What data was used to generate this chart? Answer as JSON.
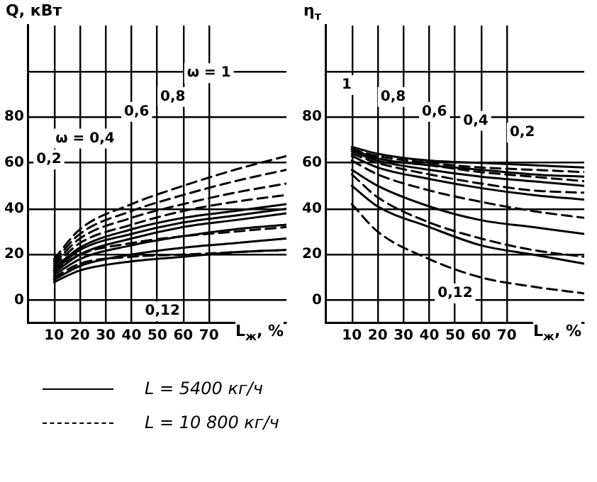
{
  "chart_data": [
    {
      "type": "line",
      "xlabel": "L$_{ж}$, %",
      "ylabel": "Q, кВт",
      "xlim": [
        0,
        100
      ],
      "xticks": [
        10,
        20,
        30,
        40,
        50,
        60,
        70
      ],
      "ylim": [
        -10,
        120
      ],
      "yticks": [
        0,
        20,
        40,
        60,
        80,
        {
          "value": 100,
          "label": null
        }
      ],
      "grid": true,
      "marker": "none",
      "legend": "bottom",
      "x": [
        10,
        20,
        40,
        60,
        80,
        100
      ],
      "series": [
        {
          "name": "L = 5400 кг/ч",
          "color": "#000000",
          "line_style": "solid",
          "values": [
            8,
            13,
            17,
            19,
            21,
            22
          ]
        },
        {
          "color": "#000000",
          "line_style": "solid",
          "values": [
            9,
            15,
            20,
            23,
            25,
            27
          ]
        },
        {
          "color": "#000000",
          "line_style": "solid",
          "values": [
            11,
            18,
            24,
            28,
            31,
            33
          ]
        },
        {
          "color": "#000000",
          "line_style": "solid",
          "values": [
            12,
            20,
            27,
            32,
            35,
            38
          ]
        },
        {
          "color": "#000000",
          "line_style": "solid",
          "values": [
            13,
            22,
            29,
            34,
            37,
            40
          ]
        },
        {
          "color": "#000000",
          "line_style": "solid",
          "values": [
            14,
            23,
            31,
            36,
            39,
            42
          ]
        },
        {
          "name": "L = 10 800 кг/ч",
          "color": "#000000",
          "line_style": "dashed",
          "values": [
            10,
            16,
            19,
            20,
            21,
            22
          ]
        },
        {
          "color": "#000000",
          "line_style": "dashed",
          "values": [
            13,
            20,
            25,
            28,
            30,
            32
          ]
        },
        {
          "color": "#000000",
          "line_style": "dashed",
          "values": [
            15,
            25,
            33,
            39,
            43,
            46
          ]
        },
        {
          "color": "#000000",
          "line_style": "dashed",
          "values": [
            16,
            27,
            36,
            42,
            47,
            51
          ]
        },
        {
          "color": "#000000",
          "line_style": "dashed",
          "values": [
            17,
            29,
            39,
            46,
            52,
            57
          ]
        },
        {
          "color": "#000000",
          "line_style": "dashed",
          "values": [
            18,
            31,
            42,
            50,
            57,
            63
          ]
        }
      ],
      "annotations": [
        "ω = 1",
        "0,8",
        "0,6",
        "ω = 0,4",
        "0,2",
        "0,12"
      ]
    },
    {
      "type": "line",
      "xlabel": "L$_{ж}$, %",
      "ylabel": "η$_{т}$",
      "xlim": [
        0,
        100
      ],
      "xticks": [
        10,
        20,
        30,
        40,
        50,
        60,
        70
      ],
      "ylim": [
        -10,
        120
      ],
      "yticks": [
        0,
        20,
        40,
        60,
        80,
        {
          "value": 100,
          "label": null
        }
      ],
      "grid": true,
      "marker": "none",
      "x": [
        10,
        20,
        40,
        60,
        80,
        100
      ],
      "series": [
        {
          "color": "#000000",
          "line_style": "solid",
          "values": [
            67,
            64,
            61,
            60,
            59,
            58
          ]
        },
        {
          "color": "#000000",
          "line_style": "solid",
          "values": [
            66,
            62,
            59,
            57,
            55,
            54
          ]
        },
        {
          "color": "#000000",
          "line_style": "solid",
          "values": [
            65,
            61,
            57,
            54,
            52,
            50
          ]
        },
        {
          "color": "#000000",
          "line_style": "solid",
          "values": [
            63,
            58,
            53,
            49,
            46,
            44
          ]
        },
        {
          "color": "#000000",
          "line_style": "solid",
          "values": [
            57,
            50,
            41,
            35,
            32,
            29
          ]
        },
        {
          "color": "#000000",
          "line_style": "solid",
          "values": [
            50,
            41,
            32,
            24,
            20,
            16
          ]
        },
        {
          "color": "#000000",
          "line_style": "dashed",
          "values": [
            66,
            63,
            60,
            58,
            57,
            56
          ]
        },
        {
          "color": "#000000",
          "line_style": "dashed",
          "values": [
            66,
            62,
            59,
            56,
            54,
            52
          ]
        },
        {
          "color": "#000000",
          "line_style": "dashed",
          "values": [
            64,
            60,
            55,
            51,
            48,
            47
          ]
        },
        {
          "color": "#000000",
          "line_style": "dashed",
          "values": [
            61,
            55,
            48,
            43,
            39,
            36
          ]
        },
        {
          "color": "#000000",
          "line_style": "dashed",
          "values": [
            55,
            45,
            34,
            27,
            22,
            19
          ]
        },
        {
          "color": "#000000",
          "line_style": "dashed",
          "values": [
            42,
            30,
            18,
            10,
            6,
            3
          ]
        }
      ],
      "annotations": [
        "1",
        "0,8",
        "0,6",
        "0,4",
        "0,2",
        "0,12"
      ]
    }
  ]
}
